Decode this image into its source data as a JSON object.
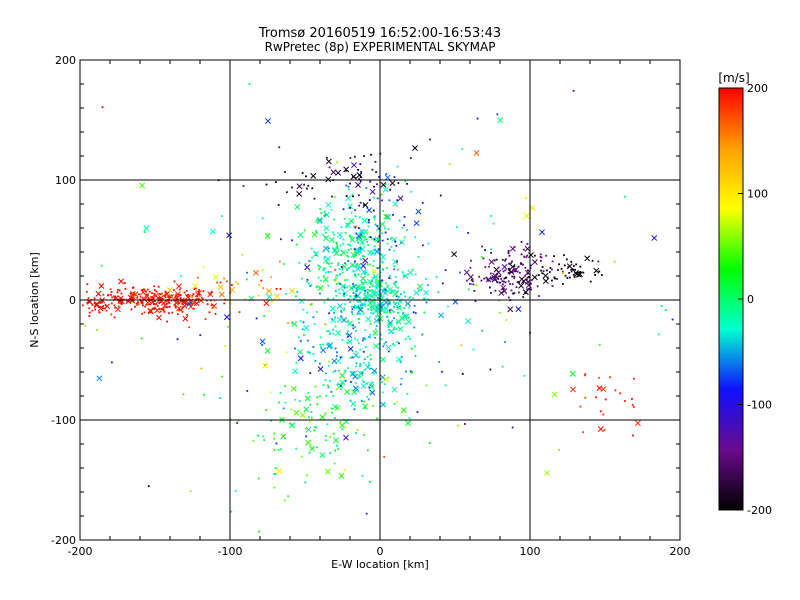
{
  "chart_data": {
    "type": "scatter",
    "title": "Tromsø 20160519 16:52:00-16:53:43",
    "subtitle": "RwPretec (8p) EXPERIMENTAL SKYMAP",
    "xlabel": "E-W location [km]",
    "ylabel": "N-S location [km]",
    "xlim": [
      -200,
      200
    ],
    "ylim": [
      -200,
      200
    ],
    "x_ticks": [
      -200,
      -100,
      0,
      100,
      200
    ],
    "y_ticks": [
      -200,
      -100,
      0,
      100,
      200
    ],
    "grid": true,
    "colorbar": {
      "label": "[m/s]",
      "min": -200,
      "max": 200,
      "ticks": [
        -200,
        -100,
        0,
        100,
        200
      ],
      "colormap": [
        "#000000",
        "#6a0a8c",
        "#1010ff",
        "#00ffd0",
        "#00ff00",
        "#ffff00",
        "#ffa000",
        "#ff0000"
      ]
    },
    "marker_types": [
      "dot",
      "cross"
    ],
    "clusters": [
      {
        "x": -145,
        "y": 0,
        "sx": 18,
        "sy": 6,
        "n": 240,
        "v": 195,
        "sv": 10
      },
      {
        "x": -185,
        "y": -3,
        "sx": 8,
        "sy": 6,
        "n": 50,
        "v": 195,
        "sv": 8
      },
      {
        "x": -95,
        "y": 10,
        "sx": 20,
        "sy": 12,
        "n": 40,
        "v": 150,
        "sv": 40
      },
      {
        "x": -20,
        "y": 40,
        "sx": 18,
        "sy": 22,
        "n": 260,
        "v": -10,
        "sv": 20
      },
      {
        "x": 0,
        "y": 0,
        "sx": 14,
        "sy": 12,
        "n": 260,
        "v": -20,
        "sv": 20
      },
      {
        "x": -20,
        "y": -40,
        "sx": 22,
        "sy": 30,
        "n": 260,
        "v": -35,
        "sv": 25
      },
      {
        "x": -40,
        "y": -110,
        "sx": 22,
        "sy": 25,
        "n": 90,
        "v": 30,
        "sv": 25
      },
      {
        "x": -5,
        "y": 60,
        "sx": 12,
        "sy": 30,
        "n": 80,
        "v": -90,
        "sv": 30
      },
      {
        "x": 85,
        "y": 22,
        "sx": 15,
        "sy": 10,
        "n": 170,
        "v": -160,
        "sv": 20
      },
      {
        "x": 125,
        "y": 25,
        "sx": 12,
        "sy": 6,
        "n": 50,
        "v": -195,
        "sv": 5
      },
      {
        "x": -20,
        "y": 100,
        "sx": 25,
        "sy": 10,
        "n": 60,
        "v": -185,
        "sv": 15
      },
      {
        "x": 150,
        "y": -80,
        "sx": 12,
        "sy": 14,
        "n": 25,
        "v": 190,
        "sv": 10
      },
      {
        "x": 0,
        "y": 0,
        "sx": 90,
        "sy": 80,
        "n": 180,
        "v": -20,
        "sv": 80
      }
    ]
  }
}
